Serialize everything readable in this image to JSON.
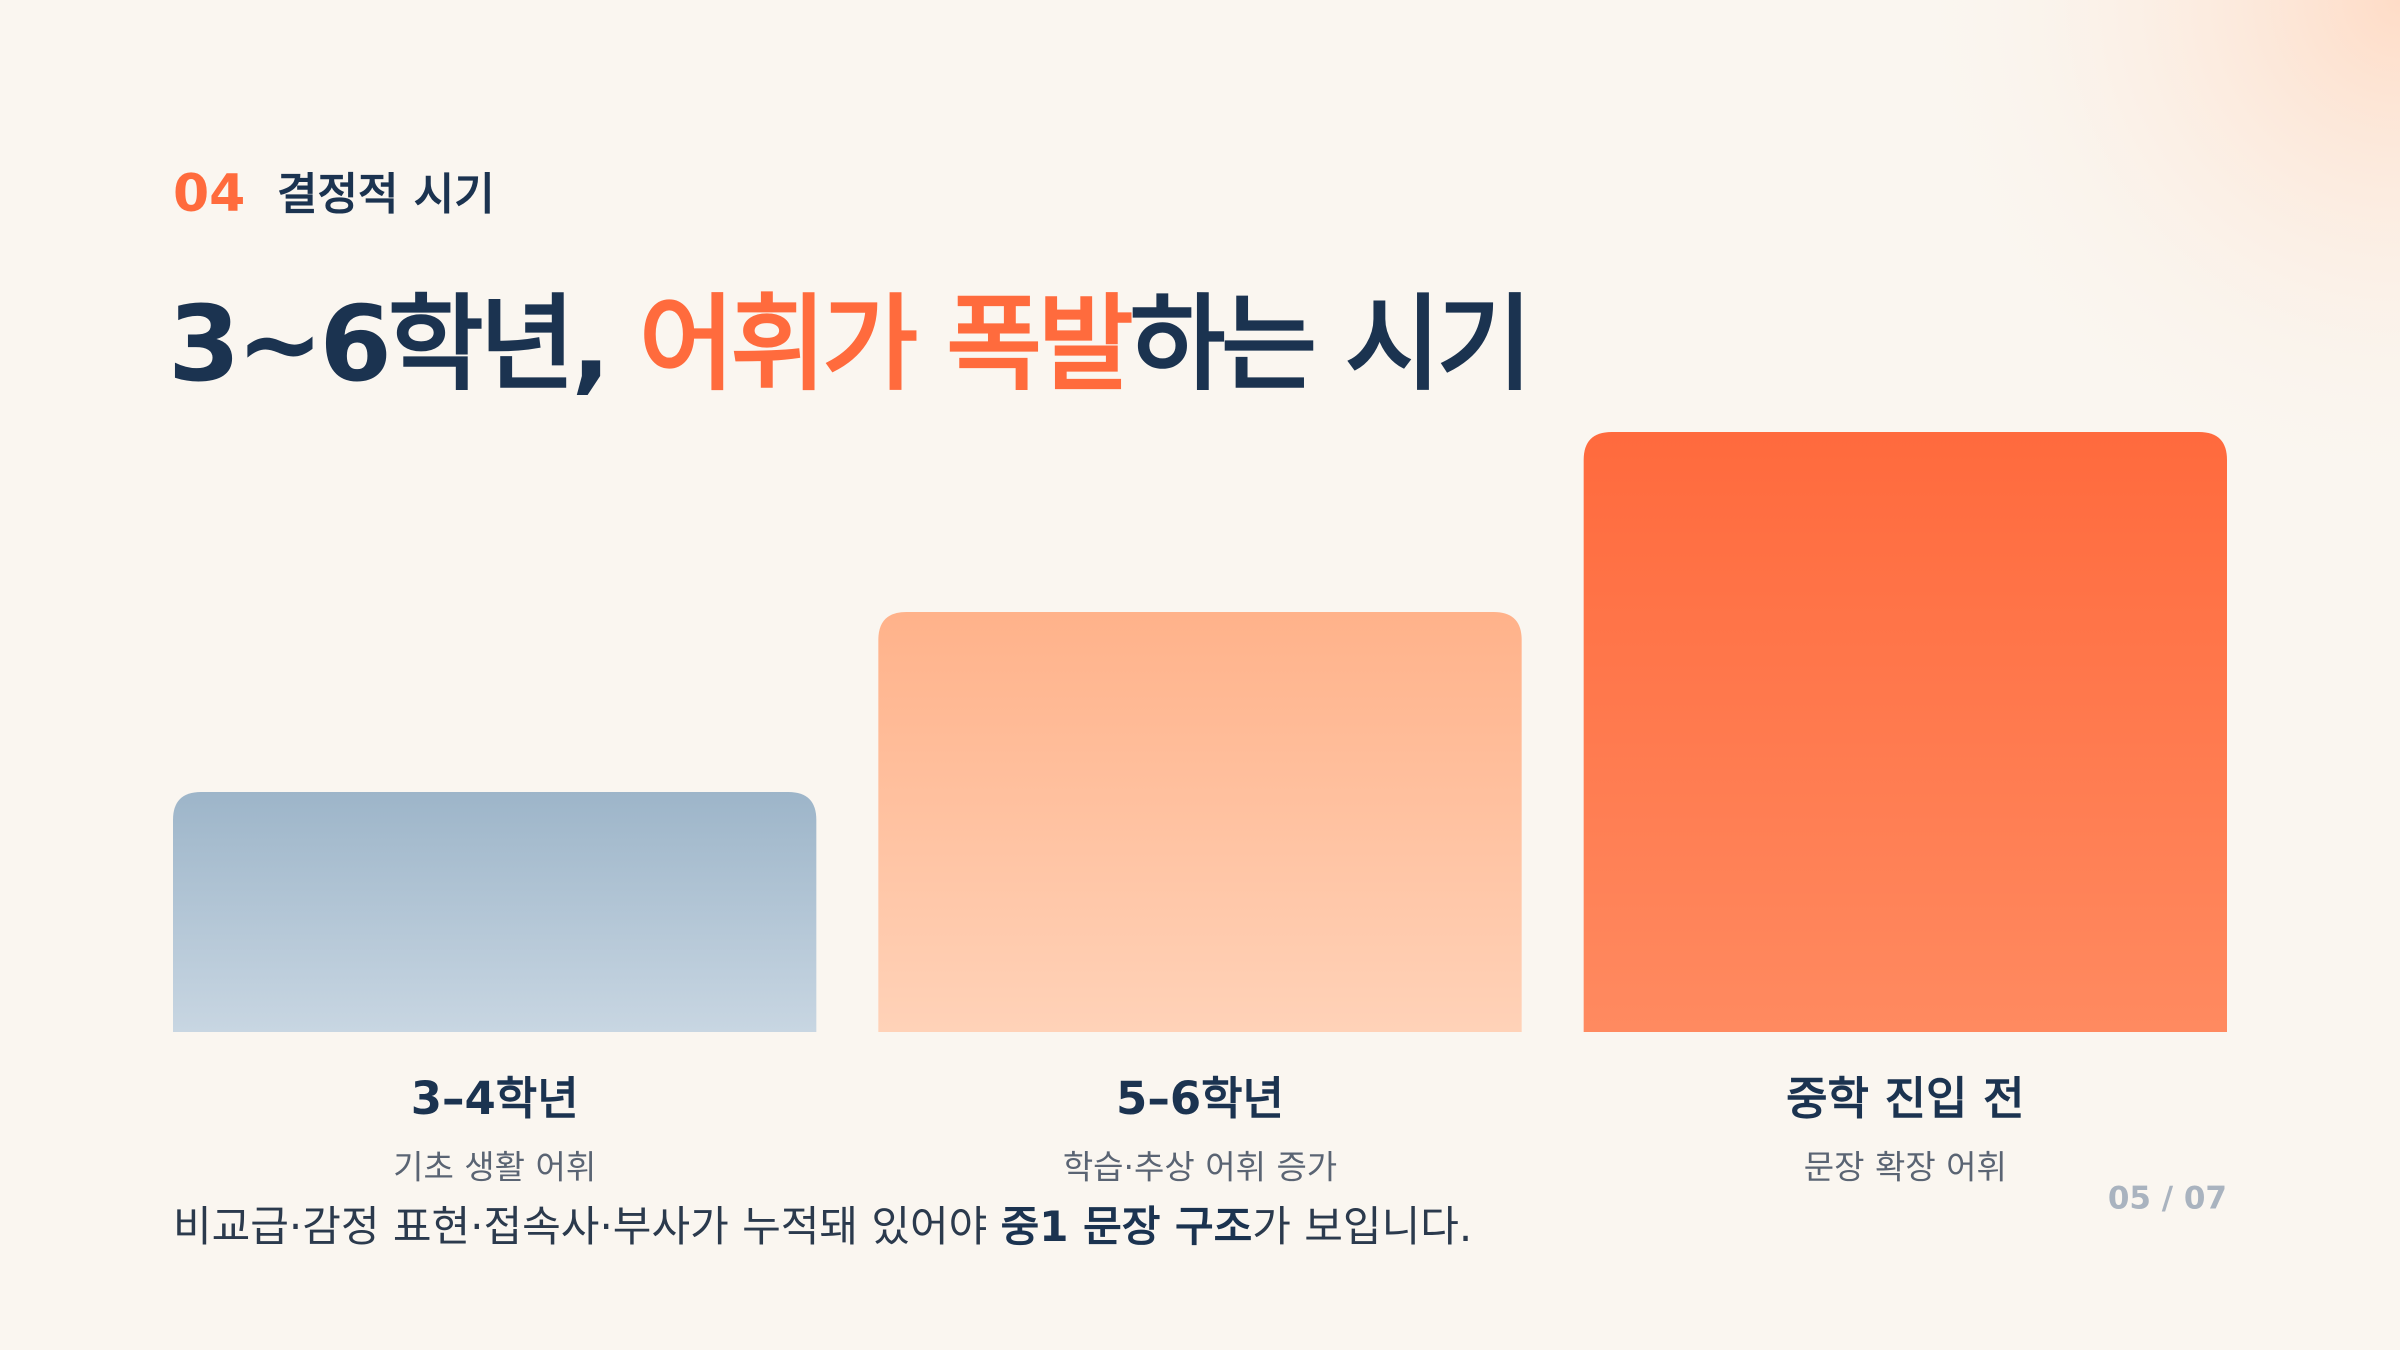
{
  "header": {
    "number": "04",
    "label": "결정적 시기"
  },
  "title": {
    "lead": "3~6학년, ",
    "highlight": "어휘가 폭발",
    "tail": "하는 시기"
  },
  "chart_data": {
    "type": "bar",
    "categories": [
      "3–4학년",
      "5–6학년",
      "중학 진입 전"
    ],
    "descriptions": [
      "기초 생활 어휘",
      "학습·추상 어휘 증가",
      "문장 확장 어휘"
    ],
    "values": [
      40,
      70,
      100
    ],
    "colors": [
      [
        "#9db5c9",
        "#c8d6e2"
      ],
      [
        "#ffb28a",
        "#ffd2b8"
      ],
      [
        "#ff6a3d",
        "#ff8a60"
      ]
    ],
    "ylim": [
      0,
      100
    ]
  },
  "footer": {
    "before": "비교급·감정 표현·접속사·부사가 누적돼 있어야 ",
    "bold": "중1 문장 구조",
    "after": "가 보입니다."
  },
  "page_number": "05 / 07"
}
